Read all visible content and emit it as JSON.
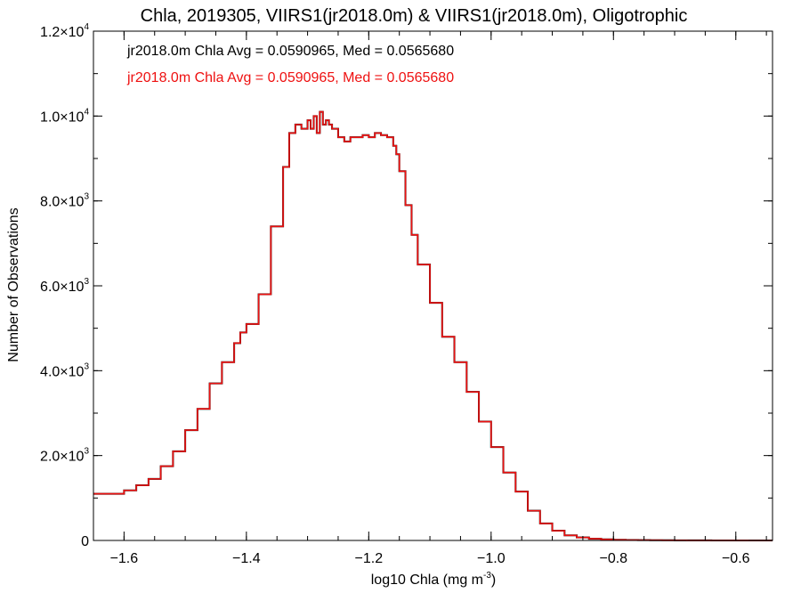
{
  "chart_data": {
    "type": "histogram",
    "title": "Chla, 2019305, VIIRS1(jr2018.0m) & VIIRS1(jr2018.0m), Oligotrophic",
    "xlabel": "log10 Chla (mg m",
    "xlabel_sup": "-3",
    "xlabel_suffix": ")",
    "ylabel": "Number of Observations",
    "xlim": [
      -1.65,
      -0.54
    ],
    "ylim": [
      0,
      12000
    ],
    "x_ticks": [
      -1.6,
      -1.4,
      -1.2,
      -1.0,
      -0.8,
      -0.6
    ],
    "x_tick_labels": [
      "−1.6",
      "−1.4",
      "−1.2",
      "−1.0",
      "−0.8",
      "−0.6"
    ],
    "y_ticks": [
      {
        "value": 0,
        "label": "0",
        "sup": ""
      },
      {
        "value": 2000,
        "label": "2.0×10",
        "sup": "3"
      },
      {
        "value": 4000,
        "label": "4.0×10",
        "sup": "3"
      },
      {
        "value": 6000,
        "label": "6.0×10",
        "sup": "3"
      },
      {
        "value": 8000,
        "label": "8.0×10",
        "sup": "3"
      },
      {
        "value": 10000,
        "label": "1.0×10",
        "sup": "4"
      },
      {
        "value": 12000,
        "label": "1.2×10",
        "sup": "4"
      }
    ],
    "annotations": [
      {
        "text": "jr2018.0m Chla Avg = 0.0590965, Med = 0.0565680",
        "color": "#000000"
      },
      {
        "text": "jr2018.0m Chla Avg = 0.0590965, Med = 0.0565680",
        "color": "#ee1111"
      }
    ],
    "series": [
      {
        "color": "#000000",
        "x": [
          -1.65,
          -1.62,
          -1.6,
          -1.58,
          -1.56,
          -1.54,
          -1.52,
          -1.5,
          -1.48,
          -1.46,
          -1.44,
          -1.42,
          -1.41,
          -1.4,
          -1.38,
          -1.36,
          -1.34,
          -1.33,
          -1.32,
          -1.31,
          -1.3,
          -1.295,
          -1.29,
          -1.285,
          -1.28,
          -1.275,
          -1.27,
          -1.265,
          -1.26,
          -1.25,
          -1.24,
          -1.23,
          -1.22,
          -1.21,
          -1.2,
          -1.19,
          -1.18,
          -1.17,
          -1.16,
          -1.155,
          -1.15,
          -1.14,
          -1.13,
          -1.12,
          -1.1,
          -1.08,
          -1.06,
          -1.04,
          -1.02,
          -1.0,
          -0.98,
          -0.96,
          -0.94,
          -0.92,
          -0.9,
          -0.88,
          -0.86,
          -0.84,
          -0.82,
          -0.8,
          -0.78,
          -0.76,
          -0.74,
          -0.72,
          -0.7,
          -0.68,
          -0.66,
          -0.64,
          -0.62,
          -0.6,
          -0.58,
          -0.56,
          -0.54
        ],
        "y": [
          1100,
          1100,
          1180,
          1300,
          1450,
          1750,
          2100,
          2600,
          3100,
          3700,
          4200,
          4650,
          4900,
          5100,
          5800,
          7400,
          8800,
          9600,
          9800,
          9700,
          9900,
          9700,
          10000,
          9600,
          10100,
          9800,
          9900,
          9800,
          9700,
          9500,
          9400,
          9500,
          9500,
          9550,
          9500,
          9600,
          9550,
          9500,
          9300,
          9100,
          8700,
          7900,
          7200,
          6500,
          5600,
          4800,
          4200,
          3500,
          2800,
          2200,
          1600,
          1150,
          700,
          400,
          230,
          120,
          70,
          40,
          25,
          15,
          10,
          8,
          6,
          4,
          3,
          2,
          2,
          1,
          1,
          1,
          0,
          0,
          0
        ]
      },
      {
        "color": "#ee1111",
        "x": [
          -1.65,
          -1.62,
          -1.6,
          -1.58,
          -1.56,
          -1.54,
          -1.52,
          -1.5,
          -1.48,
          -1.46,
          -1.44,
          -1.42,
          -1.41,
          -1.4,
          -1.38,
          -1.36,
          -1.34,
          -1.33,
          -1.32,
          -1.31,
          -1.3,
          -1.295,
          -1.29,
          -1.285,
          -1.28,
          -1.275,
          -1.27,
          -1.265,
          -1.26,
          -1.25,
          -1.24,
          -1.23,
          -1.22,
          -1.21,
          -1.2,
          -1.19,
          -1.18,
          -1.17,
          -1.16,
          -1.155,
          -1.15,
          -1.14,
          -1.13,
          -1.12,
          -1.1,
          -1.08,
          -1.06,
          -1.04,
          -1.02,
          -1.0,
          -0.98,
          -0.96,
          -0.94,
          -0.92,
          -0.9,
          -0.88,
          -0.86,
          -0.84,
          -0.82,
          -0.8,
          -0.78,
          -0.76,
          -0.74,
          -0.72,
          -0.7,
          -0.68,
          -0.66,
          -0.64,
          -0.62,
          -0.6,
          -0.58,
          -0.56,
          -0.54
        ],
        "y": [
          1100,
          1100,
          1180,
          1300,
          1450,
          1750,
          2100,
          2600,
          3100,
          3700,
          4200,
          4650,
          4900,
          5100,
          5800,
          7400,
          8800,
          9600,
          9800,
          9700,
          9900,
          9700,
          10000,
          9600,
          10100,
          9800,
          9900,
          9800,
          9700,
          9500,
          9400,
          9500,
          9500,
          9550,
          9500,
          9600,
          9550,
          9500,
          9300,
          9100,
          8700,
          7900,
          7200,
          6500,
          5600,
          4800,
          4200,
          3500,
          2800,
          2200,
          1600,
          1150,
          700,
          400,
          230,
          120,
          70,
          40,
          25,
          15,
          10,
          8,
          6,
          4,
          3,
          2,
          2,
          1,
          1,
          1,
          0,
          0,
          0
        ]
      }
    ],
    "grid": false,
    "legend": "none"
  }
}
